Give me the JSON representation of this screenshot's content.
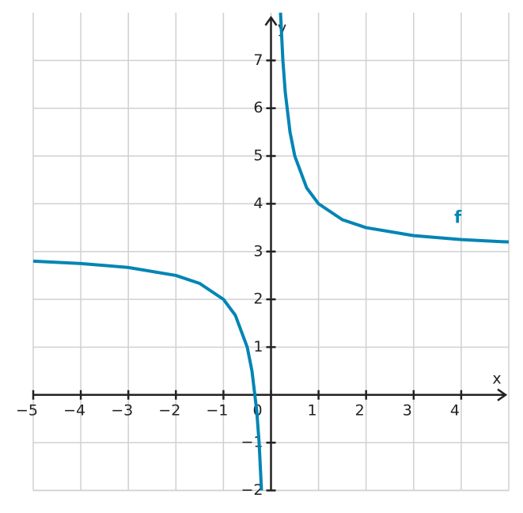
{
  "chart_data": {
    "type": "line",
    "x_label": "x",
    "y_label": "y",
    "x": [
      -5,
      -4,
      -3,
      -2,
      -1.5,
      -1,
      -0.75,
      -0.5,
      -0.4,
      -0.3,
      -0.25,
      -0.2,
      null,
      0.2,
      0.25,
      0.3,
      0.4,
      0.5,
      0.75,
      1,
      1.5,
      2,
      3,
      4,
      5
    ],
    "series": [
      {
        "name": "f",
        "color": "#0085b5",
        "values": [
          2.8,
          2.75,
          2.667,
          2.5,
          2.333,
          2,
          1.667,
          1,
          0.5,
          -0.333,
          -1,
          -2,
          null,
          8,
          7,
          6.333,
          5.5,
          5,
          4.333,
          4,
          3.667,
          3.5,
          3.333,
          3.25,
          3.2
        ]
      }
    ],
    "xlim": [
      -5,
      5
    ],
    "ylim": [
      -2,
      8
    ],
    "xticks": [
      {
        "value": -5,
        "label": "−5"
      },
      {
        "value": -4,
        "label": "−4"
      },
      {
        "value": -3,
        "label": "−3"
      },
      {
        "value": -2,
        "label": "−2"
      },
      {
        "value": -1,
        "label": "−1"
      },
      0,
      1,
      2,
      3,
      4
    ],
    "yticks": [
      {
        "value": -2,
        "label": "−2"
      },
      {
        "value": -1,
        "label": "−1"
      },
      1,
      2,
      3,
      4,
      5,
      6,
      7
    ],
    "grid": true
  }
}
